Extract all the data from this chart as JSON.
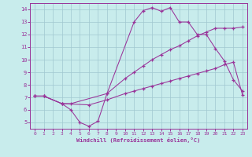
{
  "xlabel": "Windchill (Refroidissement éolien,°C)",
  "bg_color": "#c8ecec",
  "line_color": "#993399",
  "xlim": [
    -0.5,
    23.5
  ],
  "ylim": [
    4.5,
    14.5
  ],
  "xticks": [
    0,
    1,
    2,
    3,
    4,
    5,
    6,
    7,
    8,
    9,
    10,
    11,
    12,
    13,
    14,
    15,
    16,
    17,
    18,
    19,
    20,
    21,
    22,
    23
  ],
  "yticks": [
    5,
    6,
    7,
    8,
    9,
    10,
    11,
    12,
    13,
    14
  ],
  "line1_x": [
    0,
    1,
    3,
    4,
    5,
    6,
    7,
    8,
    11,
    12,
    13,
    14,
    15,
    16,
    17,
    18,
    19,
    20,
    21,
    22,
    23
  ],
  "line1_y": [
    7.1,
    7.1,
    6.5,
    6.0,
    5.0,
    4.7,
    5.1,
    7.3,
    13.0,
    13.9,
    14.15,
    13.85,
    14.15,
    13.0,
    13.0,
    12.0,
    12.0,
    10.9,
    9.9,
    8.4,
    7.5
  ],
  "line2_x": [
    0,
    1,
    3,
    4,
    8,
    10,
    11,
    12,
    13,
    14,
    15,
    16,
    17,
    18,
    19,
    20,
    21,
    22,
    23
  ],
  "line2_y": [
    7.1,
    7.1,
    6.5,
    6.5,
    7.3,
    8.5,
    9.0,
    9.5,
    10.0,
    10.4,
    10.8,
    11.1,
    11.5,
    11.9,
    12.2,
    12.5,
    12.5,
    12.5,
    12.6
  ],
  "line3_x": [
    0,
    1,
    3,
    6,
    8,
    10,
    11,
    12,
    13,
    14,
    15,
    16,
    17,
    18,
    19,
    20,
    21,
    22,
    23
  ],
  "line3_y": [
    7.1,
    7.1,
    6.5,
    6.4,
    6.8,
    7.3,
    7.5,
    7.7,
    7.9,
    8.1,
    8.3,
    8.5,
    8.7,
    8.9,
    9.1,
    9.3,
    9.6,
    9.8,
    7.2
  ]
}
